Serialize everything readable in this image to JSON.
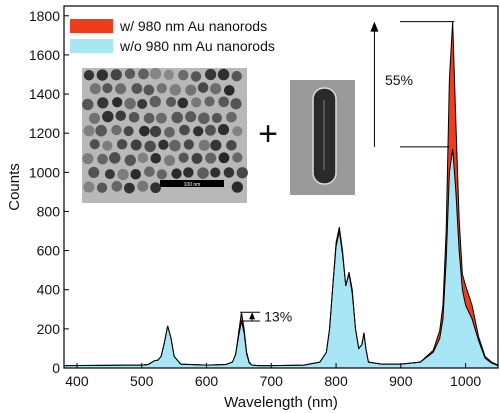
{
  "chart_data": {
    "type": "area",
    "title": "",
    "xlabel": "Wavelength (nm)",
    "ylabel": "Counts",
    "xlim": [
      380,
      1050
    ],
    "ylim": [
      0,
      1850
    ],
    "xticks": [
      400,
      500,
      600,
      700,
      800,
      900,
      1000
    ],
    "yticks": [
      0,
      200,
      400,
      600,
      800,
      1000,
      1200,
      1400,
      1600,
      1800
    ],
    "grid": false,
    "legend_position": "top-left",
    "series": [
      {
        "name": "w/ 980 nm Au nanorods",
        "color": "#f03c1e",
        "x": [
          380,
          500,
          510,
          520,
          525,
          530,
          535,
          540,
          545,
          550,
          560,
          600,
          630,
          640,
          645,
          650,
          654,
          658,
          662,
          666,
          670,
          680,
          700,
          750,
          775,
          785,
          790,
          795,
          800,
          805,
          810,
          815,
          820,
          825,
          830,
          835,
          840,
          843,
          846,
          850,
          870,
          900,
          930,
          950,
          960,
          965,
          970,
          975,
          980,
          985,
          990,
          995,
          1000,
          1010,
          1020,
          1030,
          1040,
          1050
        ],
        "y": [
          12,
          15,
          18,
          38,
          40,
          60,
          130,
          215,
          155,
          60,
          20,
          15,
          18,
          30,
          70,
          190,
          285,
          200,
          80,
          30,
          15,
          12,
          12,
          15,
          30,
          80,
          200,
          420,
          620,
          700,
          580,
          420,
          480,
          380,
          200,
          100,
          120,
          180,
          100,
          30,
          20,
          20,
          30,
          90,
          190,
          320,
          700,
          1480,
          1770,
          1250,
          760,
          480,
          420,
          320,
          160,
          60,
          30,
          15
        ]
      },
      {
        "name": "w/o 980 nm Au nanorods",
        "color": "#a8e6f5",
        "x": [
          380,
          500,
          510,
          520,
          525,
          530,
          535,
          540,
          545,
          550,
          560,
          600,
          630,
          640,
          645,
          650,
          654,
          658,
          662,
          666,
          670,
          680,
          700,
          750,
          775,
          785,
          790,
          795,
          800,
          805,
          810,
          815,
          820,
          825,
          830,
          835,
          840,
          843,
          846,
          850,
          870,
          900,
          930,
          950,
          960,
          965,
          970,
          975,
          980,
          985,
          990,
          995,
          1000,
          1010,
          1020,
          1030,
          1040,
          1050
        ],
        "y": [
          12,
          15,
          18,
          38,
          40,
          60,
          130,
          215,
          155,
          60,
          20,
          15,
          18,
          30,
          70,
          170,
          240,
          180,
          70,
          25,
          15,
          12,
          12,
          15,
          30,
          80,
          200,
          420,
          640,
          720,
          600,
          420,
          490,
          400,
          200,
          100,
          120,
          180,
          100,
          30,
          20,
          20,
          30,
          80,
          150,
          250,
          550,
          1000,
          1120,
          900,
          600,
          400,
          320,
          250,
          140,
          50,
          25,
          12
        ]
      }
    ],
    "annotations": [
      {
        "text": "55%",
        "x": 975,
        "y_from": 1130,
        "y_to": 1770
      },
      {
        "text": "13%",
        "x": 655,
        "y_from": 240,
        "y_to": 285
      }
    ],
    "inset_operator": "+"
  }
}
